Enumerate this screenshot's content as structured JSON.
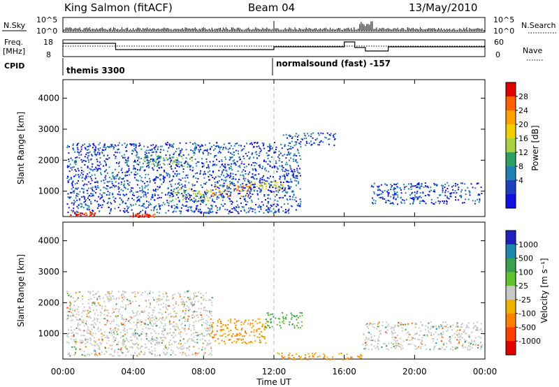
{
  "header": {
    "station": "King Salmon (fitACF)",
    "beam": "Beam 04",
    "date": "13/May/2010"
  },
  "top_panels": {
    "nsky_label": "N.Sky",
    "nsky_ticks": [
      "10^5",
      "10^0"
    ],
    "nsearch_label": "N.Search",
    "freq_label": "Freq.",
    "freq_unit": "[MHz]",
    "freq_ticks": [
      "18",
      "8"
    ],
    "nave_label": "Nave",
    "nave_ticks": [
      "60",
      "0"
    ],
    "cpid_label": "CPID",
    "cpid_segments": [
      {
        "label": "themis 3300",
        "start_hour": 0
      },
      {
        "label": "normalsound (fast) -157",
        "start_hour": 12
      }
    ]
  },
  "time_axis": {
    "label": "Time UT",
    "ticks": [
      "00:00",
      "04:00",
      "08:00",
      "12:00",
      "16:00",
      "20:00",
      "00:00"
    ]
  },
  "power_colorbar": {
    "label": "Power [dB]",
    "ticks": [
      "28",
      "24",
      "20",
      "16",
      "12",
      "8",
      "4"
    ],
    "colors": [
      "#e00000",
      "#ff6000",
      "#ffa000",
      "#f0d000",
      "#a8d040",
      "#30a060",
      "#2080b0",
      "#2040c0",
      "#1010e0"
    ]
  },
  "velocity_colorbar": {
    "label": "Velocity [m s⁻¹]",
    "ticks": [
      "1000",
      "500",
      "100",
      "25",
      "-25",
      "-100",
      "-500",
      "-1000"
    ],
    "colors": [
      "#2020c0",
      "#1e88a8",
      "#3aa050",
      "#60c030",
      "#c8c8c8",
      "#f0b000",
      "#ff8000",
      "#ff4000",
      "#e00000"
    ]
  },
  "chart_data": [
    {
      "type": "heatmap",
      "title": "",
      "xlabel": "Time UT",
      "ylabel": "Slant Range [km]",
      "xlim": [
        0,
        24
      ],
      "ylim": [
        180,
        4600
      ],
      "yticks": [
        1000,
        2000,
        3000,
        4000
      ],
      "colorbar": "Power [dB]",
      "regions": [
        {
          "t0": 0.4,
          "t1": 1.8,
          "r0": 200,
          "r1": 360,
          "value": 28
        },
        {
          "t0": 3.8,
          "t1": 5.2,
          "r0": 180,
          "r1": 300,
          "value": 28
        },
        {
          "t0": 8.4,
          "t1": 10.6,
          "r0": 850,
          "r1": 1250,
          "value": 24
        },
        {
          "t0": 10.6,
          "t1": 12.5,
          "r0": 1050,
          "r1": 1350,
          "value": 18
        },
        {
          "t0": 6.0,
          "t1": 8.4,
          "r0": 700,
          "r1": 1100,
          "value": 14
        },
        {
          "t0": 4.5,
          "t1": 7.5,
          "r0": 1800,
          "r1": 2200,
          "value": 12
        },
        {
          "t0": 0.2,
          "t1": 13.5,
          "r0": 300,
          "r1": 2600,
          "value": 4
        },
        {
          "t0": 17.5,
          "t1": 23.8,
          "r0": 600,
          "r1": 1300,
          "value": 4
        },
        {
          "t0": 12.5,
          "t1": 15.5,
          "r0": 2500,
          "r1": 2900,
          "value": 4
        }
      ]
    },
    {
      "type": "heatmap",
      "title": "",
      "xlabel": "Time UT",
      "ylabel": "Slant Range [km]",
      "xlim": [
        0,
        24
      ],
      "ylim": [
        180,
        4600
      ],
      "yticks": [
        1000,
        2000,
        3000,
        4000
      ],
      "colorbar": "Velocity [m s⁻¹]",
      "regions": [
        {
          "t0": 8.3,
          "t1": 11.5,
          "r0": 700,
          "r1": 1500,
          "value": -100
        },
        {
          "t0": 11.5,
          "t1": 13.6,
          "r0": 1200,
          "r1": 1700,
          "value": 100
        },
        {
          "t0": 0.2,
          "t1": 8.5,
          "r0": 300,
          "r1": 2400,
          "value": 0
        },
        {
          "t0": 17.0,
          "t1": 23.8,
          "r0": 500,
          "r1": 1400,
          "value": 0
        },
        {
          "t0": 12.0,
          "t1": 17.0,
          "r0": 180,
          "r1": 400,
          "value": -100
        }
      ]
    }
  ]
}
